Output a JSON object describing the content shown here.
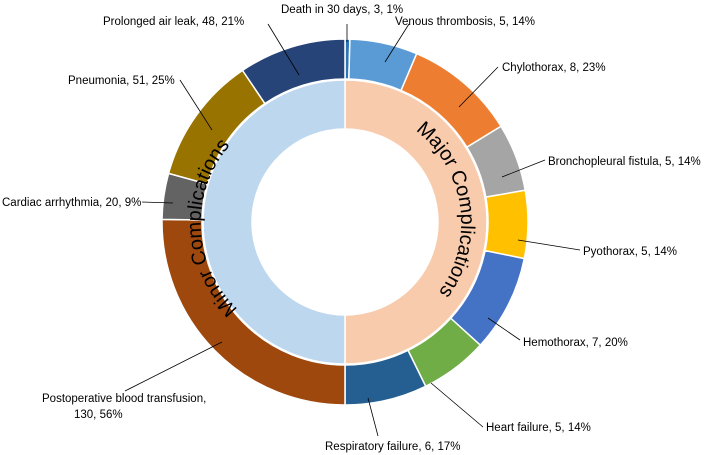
{
  "chart_data": {
    "type": "pie",
    "subtype": "nested-donut",
    "inner_ring": [
      {
        "label": "Major Complications",
        "percent": 50,
        "color": "#F8CBAD"
      },
      {
        "label": "Minor Complications",
        "percent": 50,
        "color": "#BDD7EE"
      }
    ],
    "outer_ring": [
      {
        "name": "Death in 30 days",
        "count": 3,
        "percent": 1,
        "label": "Death in 30 days, 3, 1%",
        "color": "#2E75B6"
      },
      {
        "name": "Venous thrombosis",
        "count": 5,
        "percent": 14,
        "label": "Venous thrombosis, 5, 14%",
        "color": "#5B9BD5"
      },
      {
        "name": "Chylothorax",
        "count": 8,
        "percent": 23,
        "label": "Chylothorax, 8, 23%",
        "color": "#ED7D31"
      },
      {
        "name": "Bronchopleural fistula",
        "count": 5,
        "percent": 14,
        "label": "Bronchopleural fistula, 5, 14%",
        "color": "#A5A5A5"
      },
      {
        "name": "Pyothorax",
        "count": 5,
        "percent": 14,
        "label": "Pyothorax, 5, 14%",
        "color": "#FFC000"
      },
      {
        "name": "Hemothorax",
        "count": 7,
        "percent": 20,
        "label": "Hemothorax, 7, 20%",
        "color": "#4472C4"
      },
      {
        "name": "Heart failure",
        "count": 5,
        "percent": 14,
        "label": "Heart failure, 5, 14%",
        "color": "#70AD47"
      },
      {
        "name": "Respiratory failure",
        "count": 6,
        "percent": 17,
        "label": "Respiratory failure, 6, 17%",
        "color": "#255E91"
      },
      {
        "name": "Postoperative blood transfusion",
        "count": 130,
        "percent": 56,
        "label_lines": [
          "Postoperative blood transfusion,",
          "130, 56%"
        ],
        "color": "#9E480E"
      },
      {
        "name": "Cardiac arrhythmia",
        "count": 20,
        "percent": 9,
        "label": "Cardiac arrhythmia, 20, 9%",
        "color": "#636363"
      },
      {
        "name": "Pneumonia",
        "count": 51,
        "percent": 25,
        "label": "Pneumonia, 51, 25%",
        "color": "#997300"
      },
      {
        "name": "Prolonged air leak",
        "count": 48,
        "percent": 21,
        "label": "Prolonged air leak, 48, 21%",
        "color": "#264478"
      }
    ]
  }
}
